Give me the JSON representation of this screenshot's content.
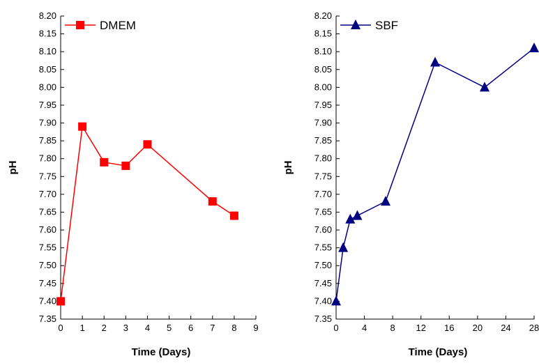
{
  "chart_data": [
    {
      "type": "line",
      "x": [
        0,
        1,
        2,
        3,
        4,
        7,
        8
      ],
      "series": [
        {
          "name": "DMEM",
          "values": [
            7.4,
            7.89,
            7.79,
            7.78,
            7.84,
            7.68,
            7.64
          ],
          "color": "#ff0000",
          "marker": "square"
        }
      ],
      "xlabel": "Time (Days)",
      "ylabel": "pH",
      "xlim": [
        0,
        9
      ],
      "ylim": [
        7.35,
        8.2
      ],
      "xticks": [
        0,
        1,
        2,
        3,
        4,
        5,
        6,
        7,
        8,
        9
      ],
      "yticks": [
        "7.35",
        "7.40",
        "7.45",
        "7.50",
        "7.55",
        "7.60",
        "7.65",
        "7.70",
        "7.75",
        "7.80",
        "7.85",
        "7.90",
        "7.95",
        "8.00",
        "8.05",
        "8.10",
        "8.15",
        "8.20"
      ],
      "grid": false,
      "legend": "top-left"
    },
    {
      "type": "line",
      "x": [
        0,
        1,
        2,
        3,
        7,
        14,
        21,
        28
      ],
      "series": [
        {
          "name": "SBF",
          "values": [
            7.4,
            7.55,
            7.63,
            7.64,
            7.68,
            8.07,
            8.0,
            8.11
          ],
          "color": "#000080",
          "marker": "triangle"
        }
      ],
      "xlabel": "Time (Days)",
      "ylabel": "pH",
      "xlim": [
        0,
        28
      ],
      "ylim": [
        7.35,
        8.2
      ],
      "xticks": [
        0,
        4,
        8,
        12,
        16,
        20,
        24,
        28
      ],
      "yticks": [
        "7.35",
        "7.40",
        "7.45",
        "7.50",
        "7.55",
        "7.60",
        "7.65",
        "7.70",
        "7.75",
        "7.80",
        "7.85",
        "7.90",
        "7.95",
        "8.00",
        "8.05",
        "8.10",
        "8.15",
        "8.20"
      ],
      "grid": false,
      "legend": "top-left"
    }
  ]
}
